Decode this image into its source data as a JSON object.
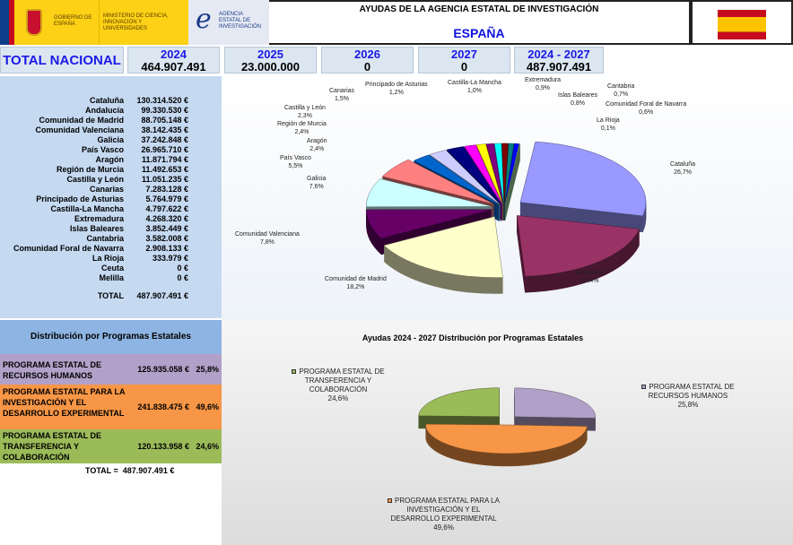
{
  "header": {
    "gov_logo": "GOBIERNO DE ESPAÑA",
    "ministry": "MINISTERIO DE CIENCIA, INNOVACIÓN Y UNIVERSIDADES",
    "agency": "AGENCIA ESTATAL DE INVESTIGACIÓN",
    "title": "AYUDAS DE LA AGENCIA ESTATAL DE INVESTIGACIÓN",
    "region": "ESPAÑA"
  },
  "totals": {
    "label": "TOTAL NACIONAL",
    "years": [
      {
        "year": "2024",
        "value": "464.907.491"
      },
      {
        "year": "2025",
        "value": "23.000.000"
      },
      {
        "year": "2026",
        "value": "0"
      },
      {
        "year": "2027",
        "value": "0"
      },
      {
        "year": "2024 - 2027",
        "value": "487.907.491"
      }
    ]
  },
  "regions": [
    {
      "name": "Cataluña",
      "value": "130.314.520 €"
    },
    {
      "name": "Andalucía",
      "value": "99.330.530 €"
    },
    {
      "name": "Comunidad de Madrid",
      "value": "88.705.148 €"
    },
    {
      "name": "Comunidad Valenciana",
      "value": "38.142.435 €"
    },
    {
      "name": "Galicia",
      "value": "37.242.848 €"
    },
    {
      "name": "País Vasco",
      "value": "26.965.710 €"
    },
    {
      "name": "Aragón",
      "value": "11.871.794 €"
    },
    {
      "name": "Región de Murcia",
      "value": "11.492.653 €"
    },
    {
      "name": "Castilla y León",
      "value": "11.051.235 €"
    },
    {
      "name": "Canarias",
      "value": "7.283.128 €"
    },
    {
      "name": "Principado de Asturias",
      "value": "5.764.979 €"
    },
    {
      "name": "Castilla-La Mancha",
      "value": "4.797.622 €"
    },
    {
      "name": "Extremadura",
      "value": "4.268.320 €"
    },
    {
      "name": "Islas Baleares",
      "value": "3.852.449 €"
    },
    {
      "name": "Cantabria",
      "value": "3.582.008 €"
    },
    {
      "name": "Comunidad Foral de Navarra",
      "value": "2.908.133 €"
    },
    {
      "name": "La Rioja",
      "value": "333.979 €"
    },
    {
      "name": "Ceuta",
      "value": "0 €"
    },
    {
      "name": "Melilla",
      "value": "0 €"
    }
  ],
  "regions_total": {
    "label": "TOTAL",
    "value": "487.907.491 €"
  },
  "programs": {
    "title": "Distribución por Programas Estatales",
    "items": [
      {
        "name": "PROGRAMA ESTATAL DE RECURSOS HUMANOS",
        "value": "125.935.058 €",
        "pct": "25,8%",
        "color": "#b1a0c7"
      },
      {
        "name": "PROGRAMA ESTATAL PARA LA INVESTIGACIÓN Y EL DESARROLLO EXPERIMENTAL",
        "value": "241.838.475 €",
        "pct": "49,6%",
        "color": "#f79646"
      },
      {
        "name": "PROGRAMA ESTATAL DE TRANSFERENCIA Y COLABORACIÓN",
        "value": "120.133.958 €",
        "pct": "24,6%",
        "color": "#9bbb59"
      }
    ],
    "total_label": "TOTAL =",
    "total_value": "487.907.491 €"
  },
  "chart_data": [
    {
      "type": "pie",
      "title": "",
      "categories": [
        "Cataluña",
        "Andalucía",
        "Comunidad de Madrid",
        "Comunidad Valenciana",
        "Galicia",
        "País Vasco",
        "Aragón",
        "Región de Murcia",
        "Castilla y León",
        "Canarias",
        "Principado de Asturias",
        "Castilla-La Mancha",
        "Extremadura",
        "Islas Baleares",
        "Cantabria",
        "Comunidad Foral de Navarra",
        "La Rioja"
      ],
      "values": [
        26.7,
        20.4,
        18.2,
        7.8,
        7.6,
        5.5,
        2.4,
        2.4,
        2.3,
        1.5,
        1.2,
        1.0,
        0.9,
        0.8,
        0.7,
        0.6,
        0.1
      ],
      "labels": [
        "26,7%",
        "20,4%",
        "18,2%",
        "7,8%",
        "7,6%",
        "5,5%",
        "2,4%",
        "2,4%",
        "2,3%",
        "1,5%",
        "1,2%",
        "1,0%",
        "0,9%",
        "0,8%",
        "0,7%",
        "0,6%",
        "0,1%"
      ],
      "colors": [
        "#9999ff",
        "#993366",
        "#ffffcc",
        "#660066",
        "#ccffff",
        "#ff8080",
        "#0066cc",
        "#ccccff",
        "#000080",
        "#ff00ff",
        "#ffff00",
        "#800080",
        "#00ffff",
        "#800000",
        "#008080",
        "#0000ff",
        "#99cc99"
      ]
    },
    {
      "type": "pie",
      "title": "Ayudas 2024 - 2027  Distribución por Programas Estatales",
      "categories": [
        "PROGRAMA ESTATAL DE RECURSOS HUMANOS",
        "PROGRAMA ESTATAL PARA LA INVESTIGACIÓN Y EL DESARROLLO EXPERIMENTAL",
        "PROGRAMA ESTATAL DE TRANSFERENCIA Y COLABORACIÓN"
      ],
      "values": [
        25.8,
        49.6,
        24.6
      ],
      "labels": [
        "25,8%",
        "49,6%",
        "24,6%"
      ],
      "colors": [
        "#b1a0c7",
        "#f79646",
        "#9bbb59"
      ]
    }
  ]
}
